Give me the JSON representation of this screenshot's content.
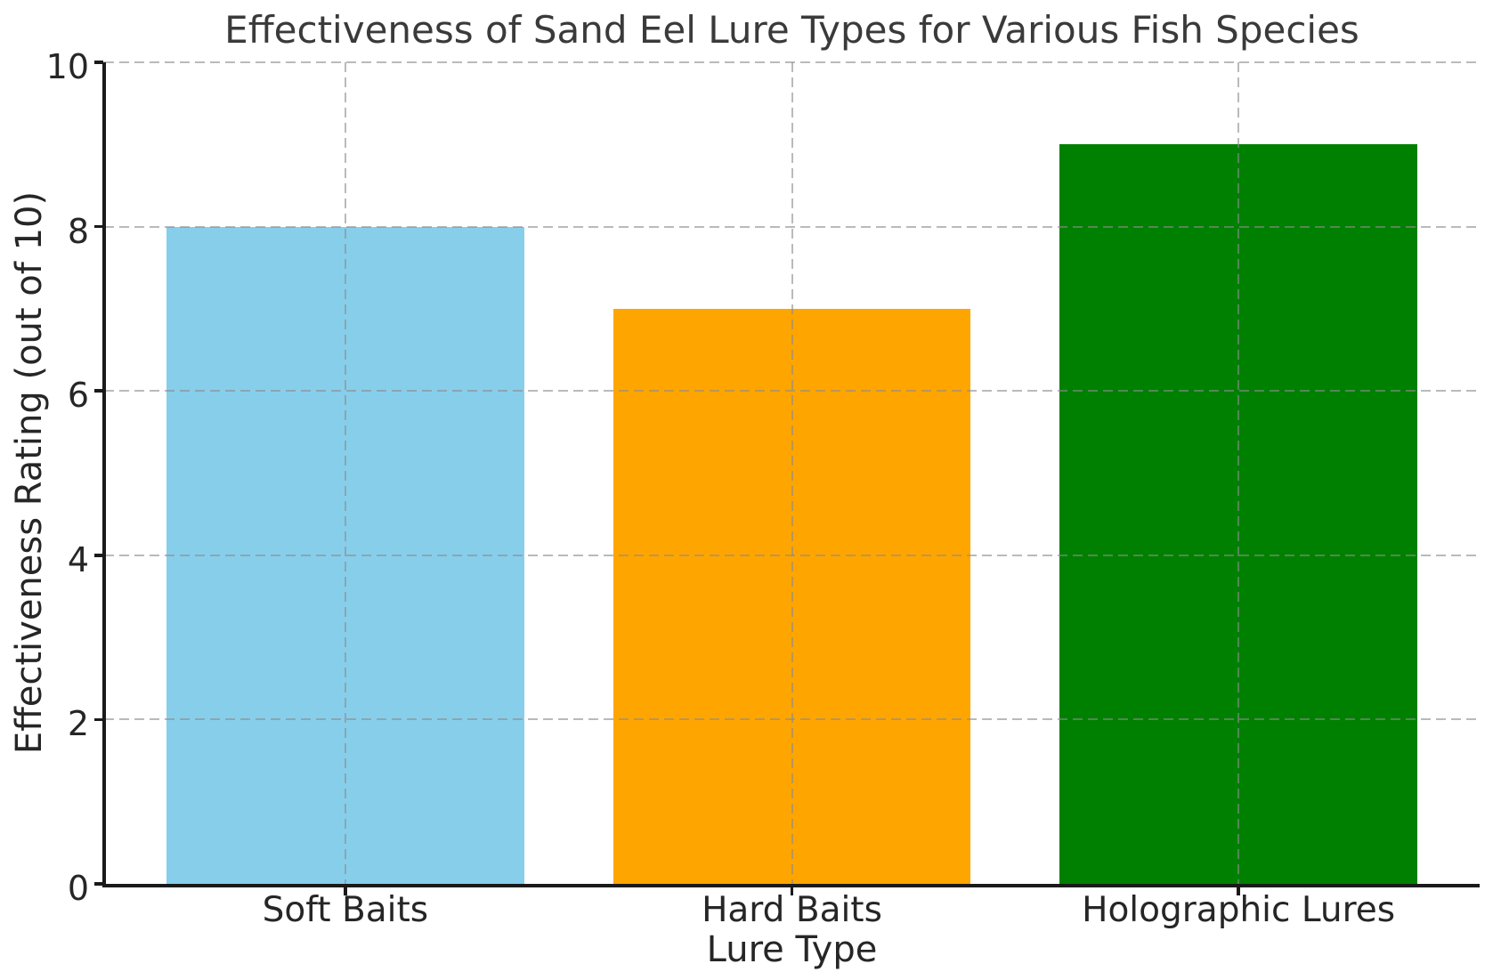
{
  "chart_data": {
    "type": "bar",
    "title": "Effectiveness of Sand Eel Lure Types for Various Fish Species",
    "xlabel": "Lure Type",
    "ylabel": "Effectiveness Rating (out of 10)",
    "categories": [
      "Soft Baits",
      "Hard Baits",
      "Holographic Lures"
    ],
    "values": [
      8,
      7,
      9
    ],
    "bar_colors": [
      "#87CEEB",
      "#FFA500",
      "#008000"
    ],
    "ylim": [
      0,
      10
    ],
    "yticks": [
      0,
      2,
      4,
      6,
      8,
      10
    ],
    "grid": true,
    "grid_style": "dashed",
    "grid_above_bars": true,
    "legend": false
  },
  "colors": {
    "background": "#ffffff",
    "grid": "#c4c4c4",
    "axis": "#1a1a1a",
    "tick_text": "#262626",
    "title_text": "#3a3a3a"
  }
}
